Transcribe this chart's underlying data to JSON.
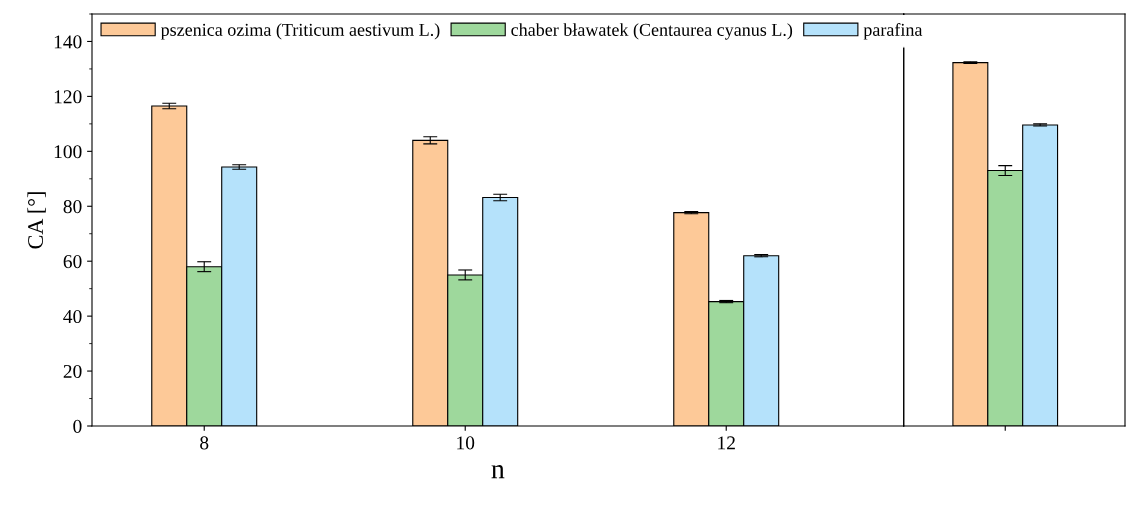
{
  "chart_data": [
    {
      "type": "bar",
      "xlabel": "n",
      "ylabel": "CA [°]",
      "categories": [
        "8",
        "10",
        "12"
      ],
      "series": [
        {
          "name": "pszenica ozima (Triticum aestivum L.)",
          "color": "#fdc998",
          "values": [
            116.5,
            104,
            77.7
          ],
          "errors": [
            1,
            1.3,
            0.4
          ]
        },
        {
          "name": "chaber bławatek (Centaurea cyanus L.)",
          "color": "#9ed89c",
          "values": [
            58,
            55,
            45.3
          ],
          "errors": [
            1.8,
            1.8,
            0.4
          ]
        },
        {
          "name": "parafina",
          "color": "#b5e2fb",
          "values": [
            94.3,
            83.2,
            62
          ],
          "errors": [
            0.8,
            1.2,
            0.4
          ]
        }
      ],
      "ylim": [
        0,
        150
      ],
      "yticks": [
        0,
        20,
        40,
        60,
        80,
        100,
        120,
        140
      ],
      "legend": "top left",
      "grid": false
    },
    {
      "type": "bar",
      "categories": [
        null
      ],
      "series": [
        {
          "color": "#fdc998",
          "values": [
            132.3
          ],
          "errors": [
            0.3
          ]
        },
        {
          "color": "#9ed89c",
          "values": [
            93
          ],
          "errors": [
            1.8
          ]
        },
        {
          "color": "#b5e2fb",
          "values": [
            109.6
          ],
          "errors": [
            0.4
          ]
        }
      ],
      "ylim": [
        0,
        150
      ],
      "yticks": [
        0,
        20,
        40,
        60,
        80,
        100,
        120,
        140
      ],
      "tick_labels": false,
      "grid": false
    }
  ]
}
